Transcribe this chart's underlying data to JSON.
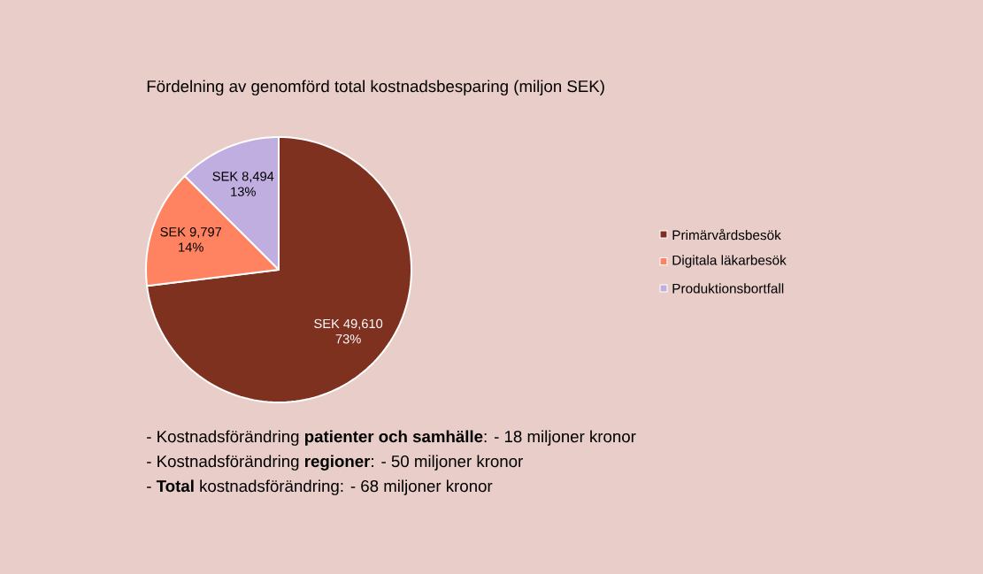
{
  "chart_data": {
    "type": "pie",
    "title": "Fördelning av genomförd total kostnadsbesparing (miljon SEK)",
    "categories": [
      "Primärvårdsbesök",
      "Digitala läkarbesök",
      "Produktionsbortfall"
    ],
    "values": [
      49610,
      9797,
      8494
    ],
    "colors": [
      "#7f3120",
      "#ff8361",
      "#c0aee0"
    ],
    "value_labels": [
      "SEK 49,610 73%",
      "SEK 9,797 14%",
      "SEK 8,494 13%"
    ],
    "legend": "right",
    "annotations": [
      "- Kostnadsförändring **patienter och samhälle**: - 18 miljoner kronor",
      "- Kostnadsförändring **regioner**: - 50 miljoner kronor",
      "- **Total** kostnadsförändring: - 68 miljoner kronor"
    ]
  }
}
